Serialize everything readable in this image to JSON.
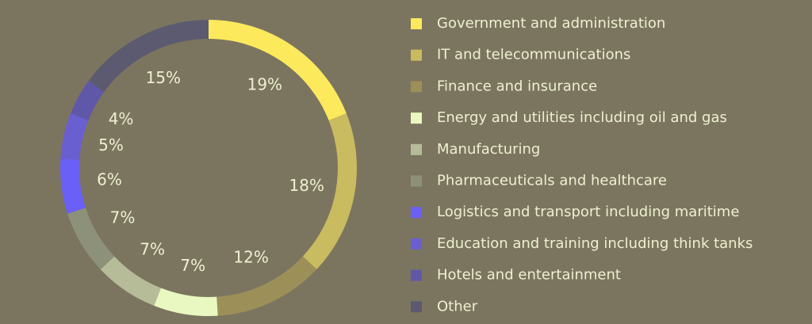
{
  "chart_data": {
    "type": "donut",
    "categories": [
      "Government and administration",
      "IT and telecommunications",
      "Finance and insurance",
      "Energy and utilities including oil and gas",
      "Manufacturing",
      "Pharmaceuticals and healthcare",
      "Logistics and transport including maritime",
      "Education and training including think tanks",
      "Hotels and entertainment",
      "Other"
    ],
    "values": [
      19,
      18,
      12,
      7,
      7,
      7,
      6,
      5,
      4,
      15
    ],
    "value_labels": [
      "19%",
      "18%",
      "12%",
      "7%",
      "7%",
      "7%",
      "6%",
      "5%",
      "4%",
      "15%"
    ],
    "colors": [
      "#fde95c",
      "#c9bb5f",
      "#9c9058",
      "#e9f8c0",
      "#b6bb98",
      "#8e917a",
      "#6a5ff6",
      "#6a5fd0",
      "#5f58a8",
      "#5c5a70"
    ],
    "legend": "right"
  }
}
